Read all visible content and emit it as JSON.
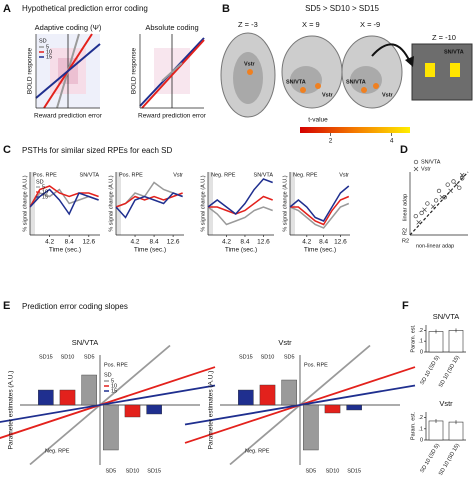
{
  "panels": {
    "A": {
      "letter": "A",
      "title": "Hypothetical prediction error coding",
      "left_title": "Adaptive coding (Ψ)",
      "right_title": "Absolute coding",
      "ylabel": [
        "BOLD response",
        "BOLD response"
      ],
      "xlabel": [
        "Reward prediction error",
        "Reward prediction error"
      ],
      "legend_title": "SD",
      "legend_items": [
        "5",
        "10",
        "15"
      ]
    },
    "B": {
      "letter": "B",
      "title": "SD5 > SD10 > SD15",
      "slices": [
        "Z = -3",
        "X = 9",
        "X = -9",
        "Z = -10"
      ],
      "labels": [
        "Vstr",
        "SN/VTA",
        "Vstr",
        "SN/VTA",
        "Vstr",
        "SN/VTA"
      ],
      "colorbar_title": "t-value",
      "colorbar_lim": [
        1,
        4.6
      ],
      "colorbar_ticks": [
        2,
        4
      ]
    },
    "C": {
      "letter": "C",
      "title": "PSTHs for similar sized RPEs for each SD"
    },
    "D": {
      "letter": "D"
    },
    "E": {
      "letter": "E",
      "title": "Prediction error coding slopes"
    },
    "F": {
      "letter": "F"
    }
  },
  "chart_data": [
    {
      "type": "line",
      "tag": "Pos. RPE",
      "title": "SN/VTA",
      "ylabel": "% signal change (A.U.)",
      "xlabel": "Time (sec.)",
      "legend_title": "SD",
      "x": [
        0,
        2.1,
        4.2,
        6.3,
        8.4,
        10.5,
        12.6,
        14.7
      ],
      "xlim": [
        0,
        15
      ],
      "xticks": [
        4.2,
        8.4,
        12.6
      ],
      "ylim": [
        -0.8,
        1
      ],
      "series": [
        {
          "name": "5",
          "color": "#9a9a9a",
          "values": [
            0,
            0.4,
            0.3,
            0.5,
            0.1,
            0.2,
            0.3,
            0.2
          ]
        },
        {
          "name": "10",
          "color": "#e3211c",
          "values": [
            0,
            0.5,
            0.6,
            0.4,
            0.3,
            0.4,
            0.4,
            0.3
          ]
        },
        {
          "name": "15",
          "color": "#1f2f8f",
          "values": [
            0,
            0.3,
            0.5,
            0.2,
            -0.2,
            0.4,
            0.3,
            0.2
          ]
        }
      ]
    },
    {
      "type": "line",
      "tag": "Pos. RPE",
      "title": "Vstr",
      "ylabel": "% signal change (A.U.)",
      "xlabel": "Time (sec.)",
      "x": [
        0,
        2.1,
        4.2,
        6.3,
        8.4,
        10.5,
        12.6,
        14.7
      ],
      "xlim": [
        0,
        15
      ],
      "xticks": [
        4.2,
        8.4,
        12.6
      ],
      "ylim": [
        -0.8,
        1
      ],
      "series": [
        {
          "color": "#9a9a9a",
          "values": [
            0,
            0.1,
            0.4,
            0.3,
            0.7,
            0.5,
            0.4,
            0.3
          ]
        },
        {
          "color": "#e3211c",
          "values": [
            0,
            0.1,
            0.3,
            0.2,
            0.3,
            0.2,
            0.3,
            0.4
          ]
        },
        {
          "color": "#1f2f8f",
          "values": [
            0,
            -0.3,
            0.2,
            0.3,
            0.2,
            0.1,
            0.4,
            0.3
          ]
        }
      ]
    },
    {
      "type": "line",
      "tag": "Neg. RPE",
      "title": "SN/VTA",
      "ylabel": "% signal change (A.U.)",
      "xlabel": "Time (sec.)",
      "x": [
        0,
        2.1,
        4.2,
        6.3,
        8.4,
        10.5,
        12.6,
        14.7
      ],
      "xlim": [
        0,
        15
      ],
      "xticks": [
        4.2,
        8.4,
        12.6
      ],
      "ylim": [
        -0.8,
        1
      ],
      "series": [
        {
          "color": "#9a9a9a",
          "values": [
            0,
            -0.2,
            -0.5,
            -0.4,
            -0.3,
            -0.1,
            0,
            -0.1
          ]
        },
        {
          "color": "#e3211c",
          "values": [
            0,
            0,
            -0.1,
            -0.2,
            -0.1,
            0.1,
            0.3,
            0.2
          ]
        },
        {
          "color": "#1f2f8f",
          "values": [
            0,
            0.2,
            0,
            -0.2,
            0.1,
            0.5,
            0.8,
            0.7
          ]
        }
      ]
    },
    {
      "type": "line",
      "tag": "Neg. RPE",
      "title": "Vstr",
      "ylabel": "% signal change (A.U.)",
      "xlabel": "Time (sec.)",
      "x": [
        0,
        2.1,
        4.2,
        6.3,
        8.4,
        10.5,
        12.6,
        14.7
      ],
      "xlim": [
        0,
        15
      ],
      "xticks": [
        4.2,
        8.4,
        12.6
      ],
      "ylim": [
        -0.8,
        1
      ],
      "series": [
        {
          "color": "#9a9a9a",
          "values": [
            0,
            -0.1,
            -0.3,
            -0.5,
            -0.6,
            -0.3,
            0,
            0.1
          ]
        },
        {
          "color": "#e3211c",
          "values": [
            0,
            0,
            -0.2,
            -0.4,
            -0.5,
            -0.1,
            0.2,
            0.3
          ]
        },
        {
          "color": "#1f2f8f",
          "values": [
            0,
            0.2,
            0,
            -0.3,
            -0.4,
            0,
            0.4,
            0.6
          ]
        }
      ]
    },
    {
      "type": "scatter",
      "xlabel_prefix": "R2",
      "xlabel": "non-linear adap",
      "ylabel_prefix": "R2",
      "ylabel": "linear adap",
      "xlim": [
        0,
        1
      ],
      "ylim": [
        0,
        1
      ],
      "series": [
        {
          "name": "SN/VTA",
          "marker": "o",
          "color": "#444444",
          "x": [
            0.1,
            0.2,
            0.3,
            0.45,
            0.5,
            0.6,
            0.65,
            0.75,
            0.85,
            0.9
          ],
          "values": [
            0.3,
            0.35,
            0.5,
            0.55,
            0.7,
            0.6,
            0.8,
            0.85,
            0.75,
            0.9
          ]
        },
        {
          "name": "Vstr",
          "marker": "x",
          "color": "#444444",
          "x": [
            0.15,
            0.25,
            0.4,
            0.55,
            0.7,
            0.8,
            0.9
          ],
          "values": [
            0.2,
            0.4,
            0.45,
            0.6,
            0.7,
            0.8,
            0.95
          ]
        }
      ]
    },
    {
      "type": "diverging",
      "title": "SN/VTA",
      "ylabel": "Parameter estimates (A.U.)",
      "annotations": [
        "Pos. RPE",
        "Neg. RPE"
      ],
      "legend_title": "SD",
      "legend": [
        {
          "name": "5",
          "color": "#9a9a9a"
        },
        {
          "name": "10",
          "color": "#e3211c"
        },
        {
          "name": "15",
          "color": "#1f2f8f"
        }
      ],
      "categories": [
        "SD15",
        "SD10",
        "SD5",
        "SD5",
        "SD10",
        "SD15"
      ],
      "values": [
        0.15,
        0.15,
        0.3,
        -0.45,
        -0.12,
        -0.09
      ],
      "colors": [
        "#1f2f8f",
        "#e3211c",
        "#9a9a9a",
        "#9a9a9a",
        "#e3211c",
        "#1f2f8f"
      ],
      "ylim": [
        -0.6,
        0.5
      ]
    },
    {
      "type": "diverging",
      "title": "Vstr",
      "ylabel": "Parameter estimates (A.U.)",
      "annotations": [
        "Pos. RPE",
        "Neg. RPE"
      ],
      "categories": [
        "SD15",
        "SD10",
        "SD5",
        "SD5",
        "SD10",
        "SD15"
      ],
      "values": [
        0.15,
        0.2,
        0.25,
        -0.45,
        -0.08,
        -0.05
      ],
      "colors": [
        "#1f2f8f",
        "#e3211c",
        "#9a9a9a",
        "#9a9a9a",
        "#e3211c",
        "#1f2f8f"
      ],
      "ylim": [
        -0.6,
        0.5
      ]
    },
    {
      "type": "bar",
      "title": "SN/VTA",
      "ylabel": "Param. est.",
      "categories": [
        "SD 10 (SD 5)",
        "SD 10 (SD 15)"
      ],
      "values": [
        0.19,
        0.2
      ],
      "color": "#ffffff",
      "ylim": [
        0,
        0.25
      ],
      "yticks": [
        0,
        {
          "value": 0.1,
          "label": ".1"
        },
        {
          "value": 0.2,
          "label": ".2"
        }
      ]
    },
    {
      "type": "bar",
      "title": "Vstr",
      "ylabel": "Param. est.",
      "categories": [
        "SD 10 (SD 5)",
        "SD 10 (SD 15)"
      ],
      "values": [
        0.17,
        0.16
      ],
      "color": "#ffffff",
      "ylim": [
        0,
        0.25
      ],
      "yticks": [
        0,
        {
          "value": 0.1,
          "label": ".1"
        },
        {
          "value": 0.2,
          "label": ".2"
        }
      ]
    }
  ]
}
